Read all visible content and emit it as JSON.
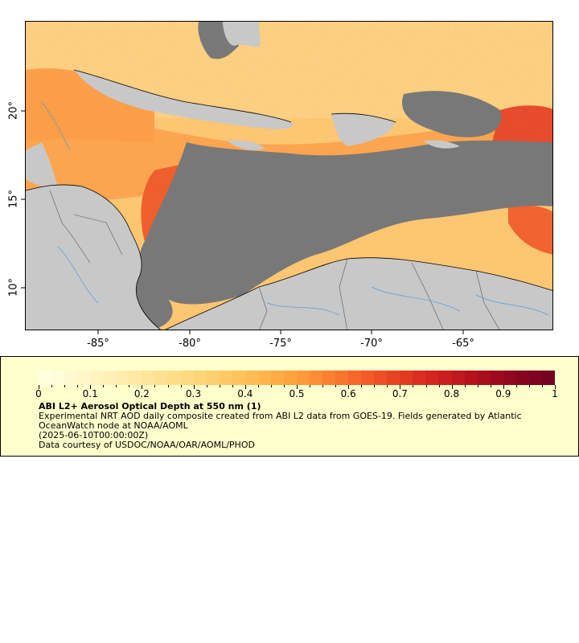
{
  "map": {
    "lat_labels": [
      "20°",
      "15°",
      "10°"
    ],
    "lon_labels": [
      "-85°",
      "-80°",
      "-75°",
      "-70°",
      "-65°"
    ],
    "colors": {
      "land": "#c8c8c8",
      "nodata_ocean": "#787878",
      "coastline": "#000000",
      "rivers": "#4f9be0",
      "borders": "#555555"
    }
  },
  "legend": {
    "title": "ABI L2+ Aerosol Optical Depth at 550 nm (1)",
    "description": "Experimental NRT AOD daily composite created from ABI L2 data from GOES-19. Fields generated by Atlantic OceanWatch node at NOAA/AOML",
    "date": "(2025-06-10T00:00:00Z)",
    "credit": "Data courtesy of USDOC/NOAA/OAR/AOML/PHOD",
    "scale_labels": [
      "0",
      "0.1",
      "0.2",
      "0.3",
      "0.4",
      "0.5",
      "0.6",
      "0.7",
      "0.8",
      "0.9",
      "1"
    ],
    "colormap": [
      "#ffffe0",
      "#fff7cc",
      "#ffefb0",
      "#ffe496",
      "#ffd87e",
      "#ffc966",
      "#ffb84e",
      "#ff9f3c",
      "#fb7e30",
      "#f35a28",
      "#e23a22",
      "#ce201e",
      "#b0101e",
      "#8e0620",
      "#760020"
    ]
  }
}
